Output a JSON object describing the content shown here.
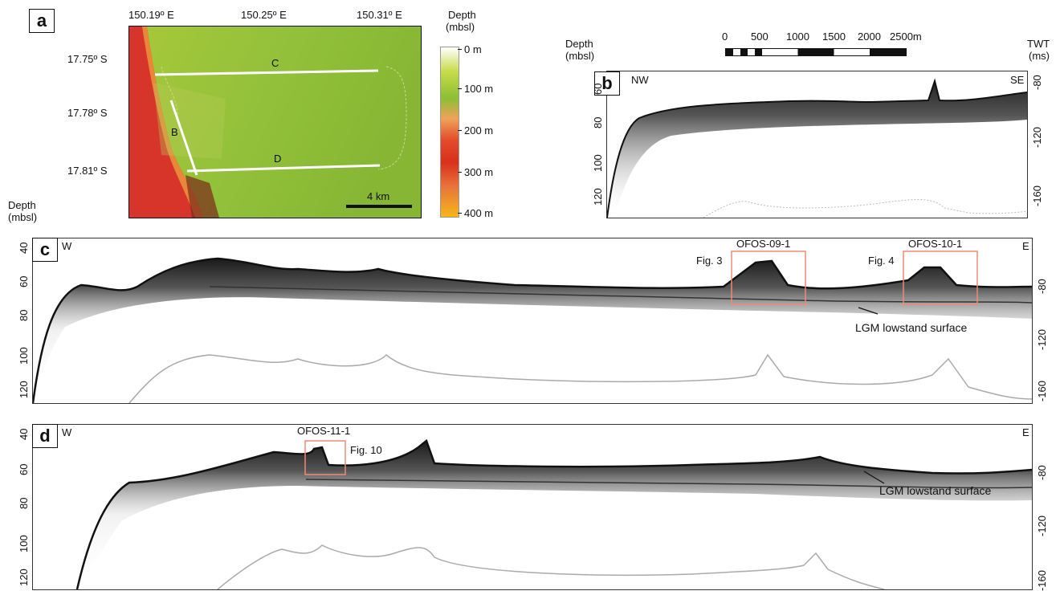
{
  "panel_a": {
    "label": "a",
    "lon_labels": [
      "150.19º E",
      "150.25º E",
      "150.31º E"
    ],
    "lat_labels": [
      "17.75º S",
      "17.78º S",
      "17.81º S"
    ],
    "transects": [
      "C",
      "B",
      "D"
    ],
    "scalebar_text": "4 km",
    "colorbar": {
      "title_line1": "Depth",
      "title_line2": "(mbsl)",
      "labels": [
        "0 m",
        "100 m",
        "200 m",
        "300 m",
        "400 m"
      ]
    }
  },
  "panel_b": {
    "label": "b",
    "depth_title_line1": "Depth",
    "depth_title_line2": "(mbsl)",
    "twt_title_line1": "TWT",
    "twt_title_line2": "(ms)",
    "left_direction": "NW",
    "right_direction": "SE",
    "depth_ticks": [
      "60",
      "80",
      "100",
      "120"
    ],
    "twt_ticks": [
      "-80",
      "-120",
      "-160"
    ],
    "scale_labels": [
      "0",
      "500",
      "1000",
      "1500",
      "2000",
      "2500m"
    ]
  },
  "panel_c": {
    "label": "c",
    "depth_title_line1": "Depth",
    "depth_title_line2": "(mbsl)",
    "left_direction": "W",
    "right_direction": "E",
    "depth_ticks": [
      "40",
      "60",
      "80",
      "100",
      "120"
    ],
    "twt_ticks": [
      "-80",
      "-120",
      "-160"
    ],
    "boxes": [
      {
        "station": "OFOS-09-1",
        "fig": "Fig. 3"
      },
      {
        "station": "OFOS-10-1",
        "fig": "Fig. 4"
      }
    ],
    "annotation": "LGM lowstand surface"
  },
  "panel_d": {
    "label": "d",
    "left_direction": "W",
    "right_direction": "E",
    "depth_ticks": [
      "40",
      "60",
      "80",
      "100",
      "120"
    ],
    "twt_ticks": [
      "-80",
      "-120",
      "-160"
    ],
    "boxes": [
      {
        "station": "OFOS-11-1",
        "fig": "Fig. 10"
      }
    ],
    "annotation": "LGM lowstand surface"
  },
  "colors": {
    "box": "#f08a70",
    "shallow": "#dfe8a0",
    "mid": "#8fc23a",
    "deep": "#d9301c",
    "deepest": "#f5b51a"
  }
}
